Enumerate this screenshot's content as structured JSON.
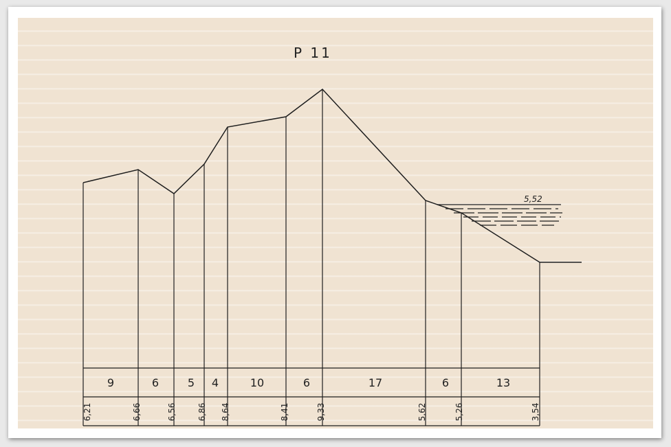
{
  "title": "P 11",
  "water_level_label": "5,52",
  "segment_widths": [
    "9",
    "6",
    "5",
    "4",
    "10",
    "6",
    "17",
    "6",
    "13"
  ],
  "elevations": [
    "6,21",
    "6,66",
    "6,56",
    "6,86",
    "8,64",
    "8,41",
    "9,33",
    "5,62",
    "5,26",
    "3,54"
  ],
  "colors": {
    "paper": "#f0e3d2",
    "ink": "#1e1e1e"
  }
}
